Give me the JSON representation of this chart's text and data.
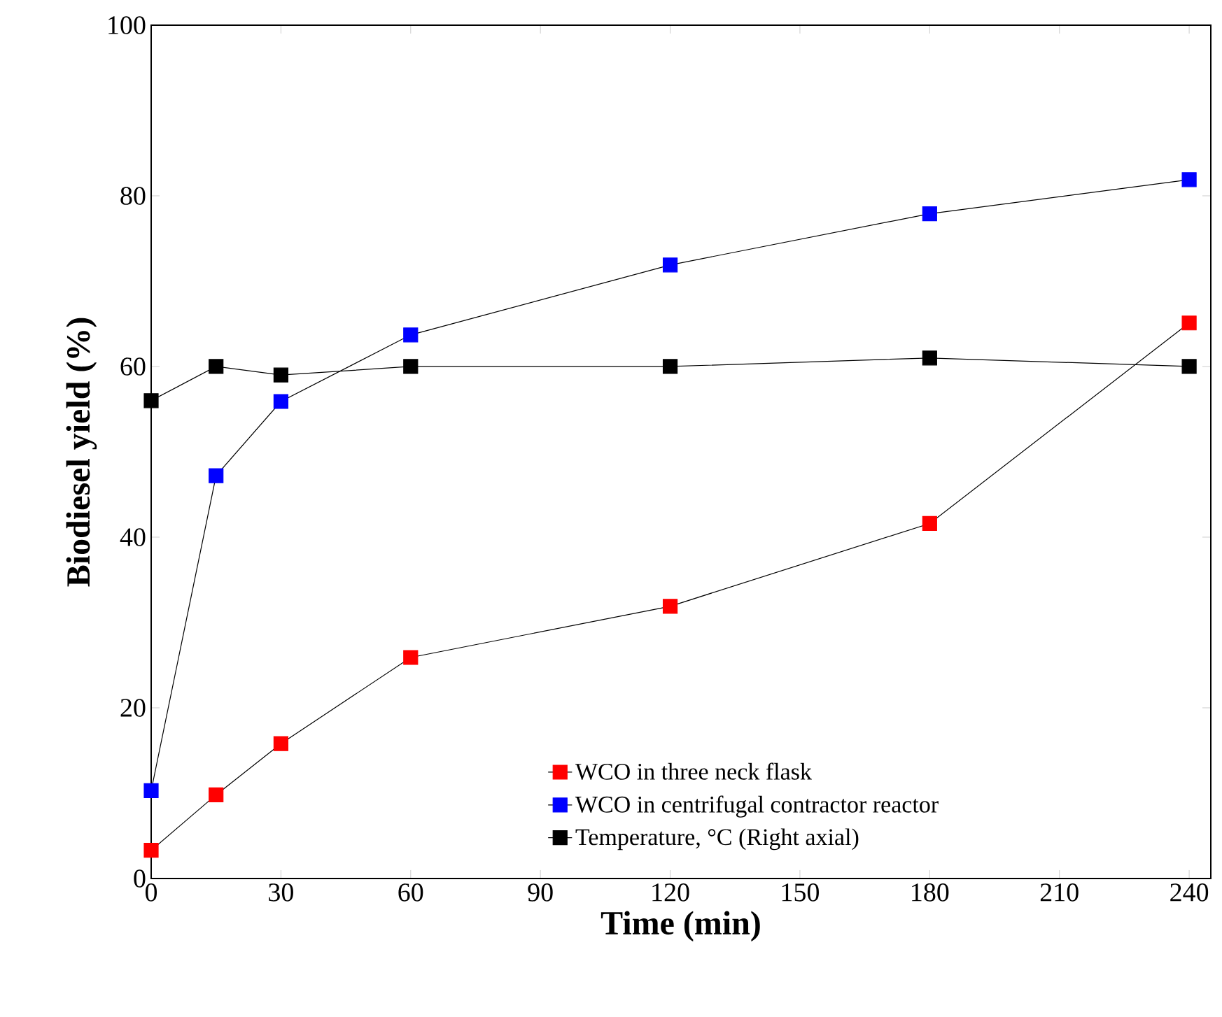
{
  "chart_data": {
    "type": "line",
    "xlabel": "Time (min)",
    "ylabel": "Biodiesel yield (%)",
    "x": [
      0,
      15,
      30,
      60,
      120,
      180,
      240
    ],
    "series": [
      {
        "name": "WCO in three neck flask",
        "color": "#ff0000",
        "values": [
          3.3,
          9.8,
          15.8,
          25.9,
          31.9,
          41.6,
          65.1
        ]
      },
      {
        "name": "WCO in centrifugal contractor reactor",
        "color": "#0000ff",
        "values": [
          10.3,
          47.2,
          55.9,
          63.7,
          71.9,
          77.9,
          81.9
        ]
      },
      {
        "name": "Temperature, °C (Right axial)",
        "color": "#000000",
        "values": [
          56,
          60,
          59,
          60,
          60,
          61,
          60
        ]
      }
    ],
    "xlim": [
      0,
      245
    ],
    "ylim": [
      0,
      100
    ],
    "xticks": [
      0,
      30,
      60,
      90,
      120,
      150,
      180,
      210,
      240
    ],
    "yticks": [
      0,
      20,
      40,
      60,
      80,
      100
    ],
    "marker": "square",
    "line_style": "solid",
    "legend": "bottom right",
    "grid": false
  }
}
